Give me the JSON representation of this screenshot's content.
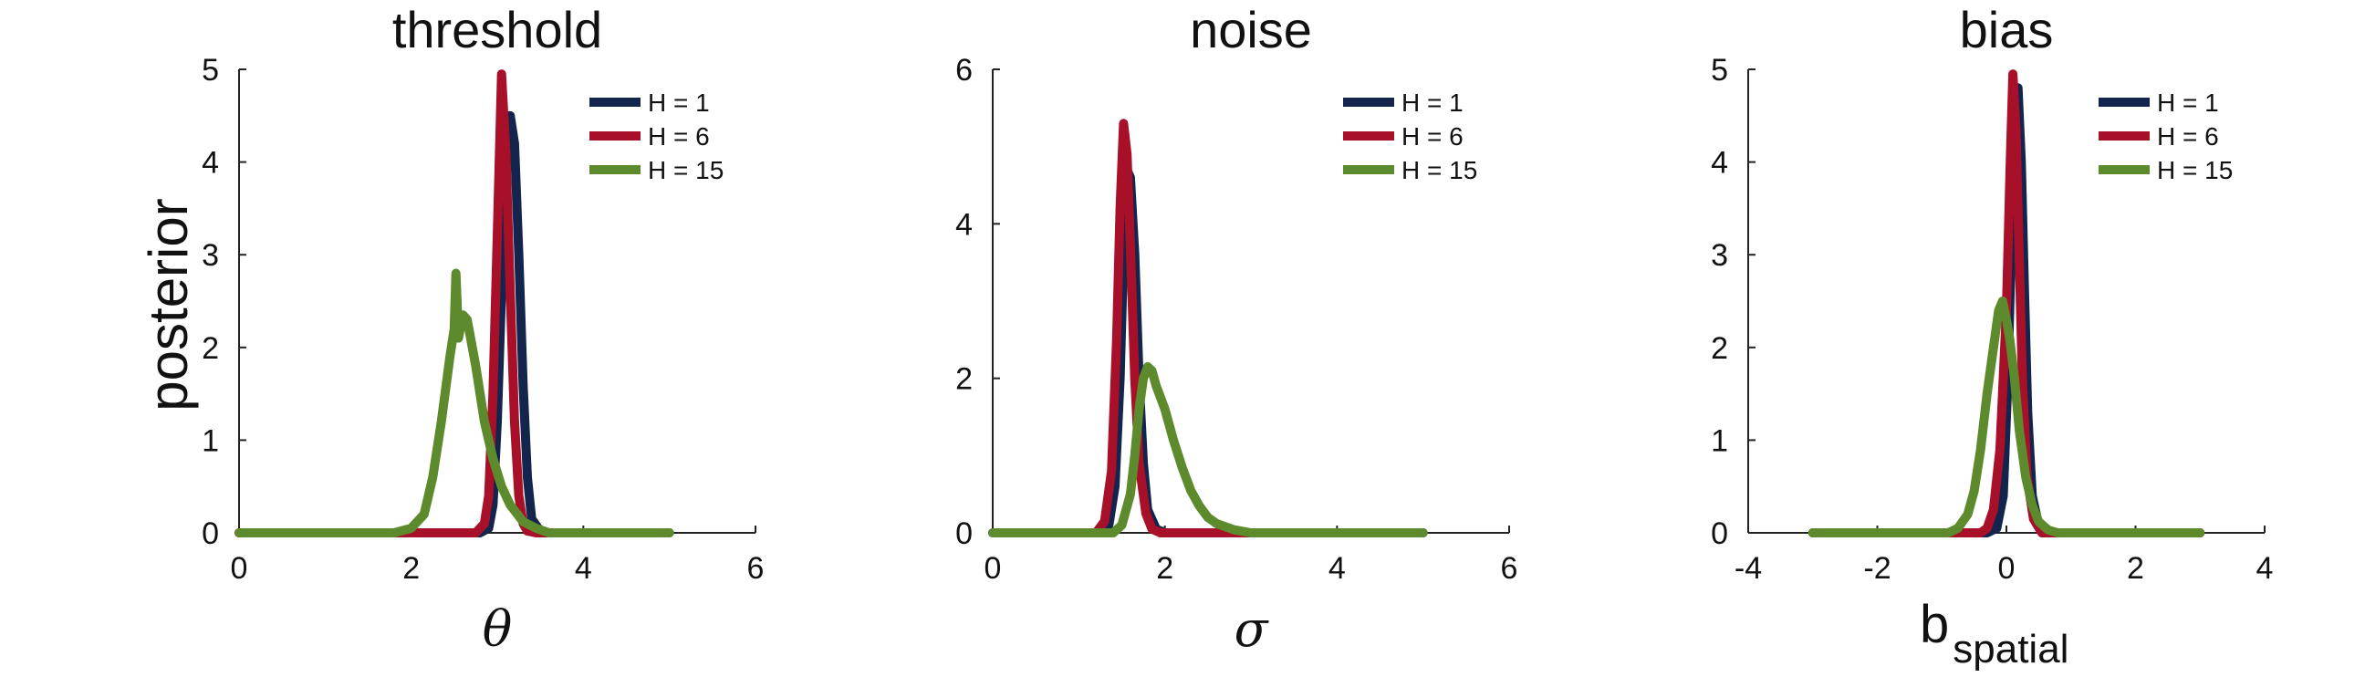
{
  "chart_data": [
    {
      "type": "line",
      "title": "threshold",
      "xlabel": "θ",
      "ylabel": "posterior",
      "xlim": [
        0,
        6
      ],
      "ylim": [
        0,
        5
      ],
      "xticks": [
        "0",
        "2",
        "4",
        "6"
      ],
      "yticks": [
        "0",
        "1",
        "2",
        "3",
        "4",
        "5"
      ],
      "legend_position": "top-right",
      "series": [
        {
          "name": "H = 1",
          "color": "#13254d",
          "x": [
            0,
            2.8,
            2.9,
            2.95,
            3.0,
            3.05,
            3.1,
            3.15,
            3.2,
            3.25,
            3.3,
            3.35,
            3.4,
            3.5,
            3.6,
            5
          ],
          "y": [
            0,
            0,
            0.05,
            0.3,
            1.2,
            2.6,
            3.9,
            4.5,
            4.2,
            3.0,
            1.6,
            0.6,
            0.15,
            0.02,
            0,
            0
          ]
        },
        {
          "name": "H = 6",
          "color": "#a8102a",
          "x": [
            0,
            2.75,
            2.85,
            2.9,
            2.95,
            3.0,
            3.05,
            3.1,
            3.15,
            3.2,
            3.25,
            3.3,
            3.35,
            3.45,
            5
          ],
          "y": [
            0,
            0,
            0.1,
            0.4,
            1.5,
            3.2,
            4.95,
            4.1,
            2.6,
            1.2,
            0.4,
            0.1,
            0.02,
            0,
            0
          ]
        },
        {
          "name": "H = 15",
          "color": "#5c8a2c",
          "x": [
            0,
            1.8,
            2.0,
            2.15,
            2.25,
            2.35,
            2.45,
            2.5,
            2.52,
            2.55,
            2.6,
            2.65,
            2.75,
            2.85,
            2.95,
            3.05,
            3.15,
            3.3,
            3.45,
            3.6,
            5
          ],
          "y": [
            0,
            0,
            0.05,
            0.2,
            0.6,
            1.2,
            1.9,
            2.2,
            2.8,
            2.1,
            2.35,
            2.3,
            1.8,
            1.2,
            0.8,
            0.5,
            0.3,
            0.12,
            0.05,
            0,
            0
          ]
        }
      ]
    },
    {
      "type": "line",
      "title": "noise",
      "xlabel": "σ",
      "ylabel": "",
      "xlim": [
        0,
        6
      ],
      "ylim": [
        0,
        6
      ],
      "xticks": [
        "0",
        "2",
        "4",
        "6"
      ],
      "yticks": [
        "0",
        "2",
        "4",
        "6"
      ],
      "legend_position": "top-right",
      "series": [
        {
          "name": "H = 1",
          "color": "#13254d",
          "x": [
            0,
            1.25,
            1.35,
            1.42,
            1.48,
            1.52,
            1.56,
            1.6,
            1.65,
            1.7,
            1.75,
            1.8,
            1.9,
            2.0,
            5
          ],
          "y": [
            0,
            0,
            0.1,
            0.6,
            2.0,
            3.6,
            4.7,
            4.6,
            3.6,
            2.0,
            0.9,
            0.3,
            0.05,
            0,
            0
          ]
        },
        {
          "name": "H = 6",
          "color": "#a8102a",
          "x": [
            0,
            1.2,
            1.3,
            1.38,
            1.44,
            1.48,
            1.52,
            1.56,
            1.6,
            1.65,
            1.7,
            1.78,
            1.85,
            1.95,
            5
          ],
          "y": [
            0,
            0,
            0.15,
            0.8,
            2.5,
            4.2,
            5.3,
            4.9,
            3.7,
            2.0,
            0.9,
            0.25,
            0.05,
            0,
            0
          ]
        },
        {
          "name": "H = 15",
          "color": "#5c8a2c",
          "x": [
            0,
            1.4,
            1.5,
            1.6,
            1.65,
            1.7,
            1.75,
            1.8,
            1.85,
            1.9,
            1.95,
            2.0,
            2.1,
            2.2,
            2.3,
            2.4,
            2.5,
            2.6,
            2.8,
            3.0,
            5
          ],
          "y": [
            0,
            0,
            0.1,
            0.5,
            1.0,
            1.6,
            2.0,
            2.15,
            2.1,
            1.9,
            1.75,
            1.6,
            1.2,
            0.85,
            0.55,
            0.35,
            0.2,
            0.12,
            0.04,
            0,
            0
          ]
        }
      ]
    },
    {
      "type": "line",
      "title": "bias",
      "xlabel": "b",
      "xlabel_subscript": "spatial",
      "ylabel": "",
      "xlim": [
        -4,
        4
      ],
      "ylim": [
        0,
        5
      ],
      "xticks": [
        "-4",
        "-2",
        "0",
        "2",
        "4"
      ],
      "yticks": [
        "0",
        "1",
        "2",
        "3",
        "4",
        "5"
      ],
      "legend_position": "top-right",
      "series": [
        {
          "name": "H = 1",
          "color": "#13254d",
          "x": [
            -3,
            -0.3,
            -0.15,
            -0.05,
            0.02,
            0.08,
            0.13,
            0.18,
            0.23,
            0.28,
            0.33,
            0.4,
            0.5,
            0.6,
            3
          ],
          "y": [
            0,
            0,
            0.05,
            0.4,
            1.6,
            3.2,
            4.6,
            4.8,
            4.0,
            2.6,
            1.3,
            0.4,
            0.08,
            0,
            0
          ]
        },
        {
          "name": "H = 6",
          "color": "#a8102a",
          "x": [
            -3,
            -0.4,
            -0.3,
            -0.2,
            -0.1,
            0.0,
            0.06,
            0.1,
            0.15,
            0.2,
            0.25,
            0.32,
            0.42,
            0.55,
            3
          ],
          "y": [
            0,
            0,
            0.05,
            0.25,
            0.9,
            2.4,
            4.0,
            4.95,
            4.3,
            2.9,
            1.6,
            0.6,
            0.15,
            0,
            0
          ]
        },
        {
          "name": "H = 15",
          "color": "#5c8a2c",
          "x": [
            -3,
            -0.9,
            -0.75,
            -0.6,
            -0.5,
            -0.4,
            -0.3,
            -0.2,
            -0.12,
            -0.06,
            0.0,
            0.05,
            0.12,
            0.2,
            0.3,
            0.4,
            0.5,
            0.65,
            0.8,
            3
          ],
          "y": [
            0,
            0,
            0.05,
            0.2,
            0.45,
            0.9,
            1.5,
            2.0,
            2.4,
            2.5,
            2.3,
            2.1,
            1.7,
            1.1,
            0.6,
            0.3,
            0.12,
            0.03,
            0,
            0
          ]
        }
      ]
    }
  ]
}
